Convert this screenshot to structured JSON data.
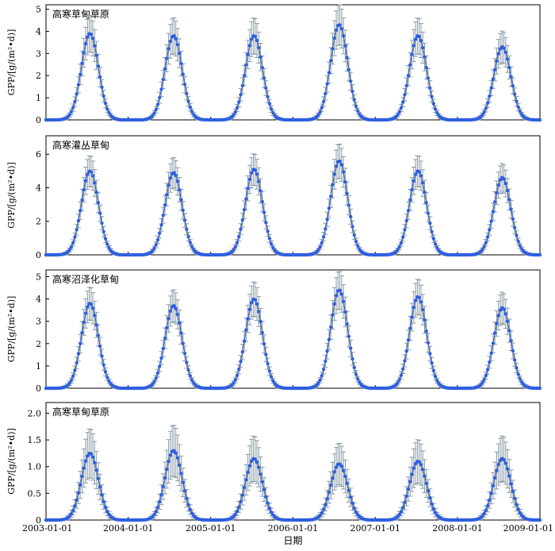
{
  "chart_data": {
    "type": "line",
    "panel_count": 4,
    "shared_x": {
      "xlabel": "日期",
      "tick_labels": [
        "2003-01-01",
        "2004-01-01",
        "2005-01-01",
        "2006-01-01",
        "2007-01-01",
        "2008-01-01",
        "2009-01-01"
      ],
      "xlim": [
        "2003-01-01",
        "2009-01-01"
      ]
    },
    "marker_color": "#2f5fe0",
    "line_color": "#4a6fb8",
    "errorbar_color": "#8a9ba6",
    "peak_dates": [
      "2003-07-15",
      "2004-07-20",
      "2005-07-12",
      "2006-07-25",
      "2007-07-10",
      "2008-07-18"
    ],
    "panels": [
      {
        "title": "高寒草甸草原",
        "ylabel": "GPP/[g/(m²•d)]",
        "ylim": [
          0,
          5.2
        ],
        "yticks": [
          0,
          1,
          2,
          3,
          4,
          5
        ],
        "ytick_labels": [
          "0",
          "1",
          "2",
          "3",
          "4",
          "5"
        ],
        "series": [
          {
            "peaks": [
              3.9,
              3.8,
              3.8,
              4.3,
              3.8,
              3.3
            ],
            "error_frac": 0.2
          }
        ]
      },
      {
        "title": "高寒灌丛草甸",
        "ylabel": "GPP/[g/(m²•d)]",
        "ylim": [
          0,
          7.1
        ],
        "yticks": [
          0,
          2,
          4,
          6
        ],
        "ytick_labels": [
          "0",
          "2",
          "4",
          "6"
        ],
        "series": [
          {
            "peaks": [
              5.0,
              4.9,
              5.1,
              5.6,
              5.0,
              4.6
            ],
            "error_frac": 0.17
          }
        ]
      },
      {
        "title": "高寒沼泽化草甸",
        "ylabel": "GPP/[g/(m²•d)]",
        "ylim": [
          0,
          5.3
        ],
        "yticks": [
          0,
          1,
          2,
          3,
          4,
          5
        ],
        "ytick_labels": [
          "0",
          "1",
          "2",
          "3",
          "4",
          "5"
        ],
        "series": [
          {
            "peaks": [
              3.8,
              3.7,
              4.0,
              4.4,
              4.1,
              3.6
            ],
            "error_frac": 0.18
          }
        ]
      },
      {
        "title": "高寒草甸草原",
        "ylabel": "GPP/[g/(m²•d)]",
        "ylim": [
          0,
          2.2
        ],
        "yticks": [
          0,
          0.5,
          1.0,
          1.5,
          2.0
        ],
        "ytick_labels": [
          "0",
          "0.5",
          "1.0",
          "1.5",
          "2.0"
        ],
        "series": [
          {
            "peaks": [
              1.25,
              1.3,
              1.15,
              1.05,
              1.1,
              1.15
            ],
            "error_frac": 0.35
          }
        ]
      }
    ]
  }
}
